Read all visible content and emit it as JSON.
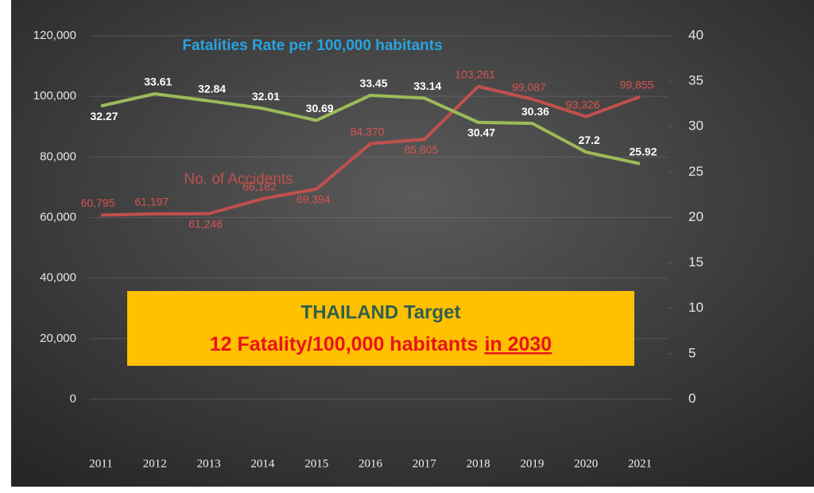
{
  "chart_data": {
    "type": "line",
    "title": "Fatalities Rate per 100,000 habitants",
    "annotation": "No. of Accidents",
    "target_box": {
      "title": "THAILAND Target",
      "text": "12 Fatality/100,000 habitants",
      "emphasis": "in 2030"
    },
    "categories": [
      "2011",
      "2012",
      "2013",
      "2014",
      "2015",
      "2016",
      "2017",
      "2018",
      "2019",
      "2020",
      "2021"
    ],
    "series": [
      {
        "name": "No. of Accidents",
        "color": "#c0504d",
        "values": [
          60795,
          61197,
          61246,
          66182,
          69394,
          84370,
          85805,
          103261,
          99087,
          93326,
          99855
        ],
        "value_labels": [
          "60,795",
          "61,197",
          "61,246",
          "66,182",
          "69,394",
          "84,370",
          "85,805",
          "103,261",
          "99,087",
          "93,326",
          "99,855"
        ]
      },
      {
        "name": "Fatalities Rate per 100,000 habitants",
        "color": "#9bbb59",
        "axis": "y2",
        "values": [
          32.27,
          33.61,
          32.84,
          32.01,
          30.69,
          33.45,
          33.14,
          30.47,
          30.36,
          27.2,
          25.92
        ]
      }
    ],
    "ylim": [
      0,
      120000
    ],
    "yticks": [
      {
        "value": 0,
        "label": "0"
      },
      {
        "value": 20000,
        "label": "20,000"
      },
      {
        "value": 40000,
        "label": "40,000"
      },
      {
        "value": 60000,
        "label": "60,000"
      },
      {
        "value": 80000,
        "label": "80,000"
      },
      {
        "value": 100000,
        "label": "100,000"
      },
      {
        "value": 120000,
        "label": "120,000"
      }
    ],
    "y2lim": [
      0,
      40
    ],
    "y2ticks": [
      0,
      5,
      10,
      15,
      20,
      25,
      30,
      35,
      40
    ],
    "grid": true
  }
}
